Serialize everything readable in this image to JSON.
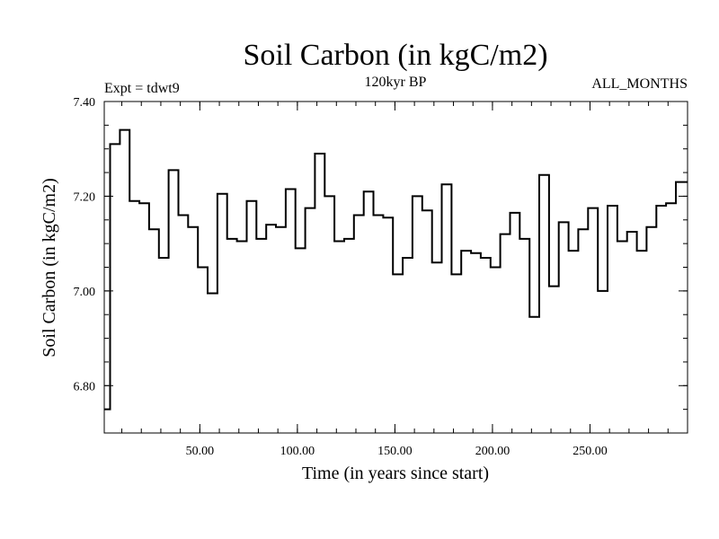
{
  "chart_data": {
    "type": "line",
    "title": "Soil Carbon (in kgC/m2)",
    "subtitle": "120kyr BP",
    "expt_label": "Expt = tdwt9",
    "months_label": "ALL_MONTHS",
    "xlabel": "Time (in years since start)",
    "ylabel": "Soil Carbon (in kgC/m2)",
    "xlim": [
      1,
      300
    ],
    "ylim": [
      6.7,
      7.4
    ],
    "x_ticks": [
      50,
      100,
      150,
      200,
      250
    ],
    "x_tick_labels": [
      "50.00",
      "100.00",
      "150.00",
      "200.00",
      "250.00"
    ],
    "y_ticks": [
      6.8,
      7.0,
      7.2,
      7.4
    ],
    "y_tick_labels": [
      "6.80",
      "7.00",
      "7.20",
      "7.40"
    ],
    "series": [
      {
        "name": "Soil Carbon",
        "style": "step",
        "step_width": 5,
        "x_start": 1,
        "values": [
          6.75,
          7.31,
          7.34,
          7.19,
          7.185,
          7.13,
          7.07,
          7.255,
          7.16,
          7.135,
          7.05,
          6.995,
          7.205,
          7.11,
          7.105,
          7.19,
          7.11,
          7.14,
          7.135,
          7.215,
          7.09,
          7.175,
          7.29,
          7.2,
          7.105,
          7.11,
          7.16,
          7.21,
          7.16,
          7.155,
          7.035,
          7.07,
          7.2,
          7.17,
          7.06,
          7.225,
          7.035,
          7.085,
          7.08,
          7.07,
          7.05,
          7.12,
          7.165,
          7.11,
          6.945,
          7.245,
          7.01,
          7.145,
          7.085,
          7.13,
          7.175,
          7.0,
          7.18,
          7.105,
          7.125,
          7.085,
          7.135,
          7.18,
          7.185,
          7.23
        ]
      }
    ]
  },
  "colors": {
    "line": "#000000",
    "background": "#ffffff"
  }
}
